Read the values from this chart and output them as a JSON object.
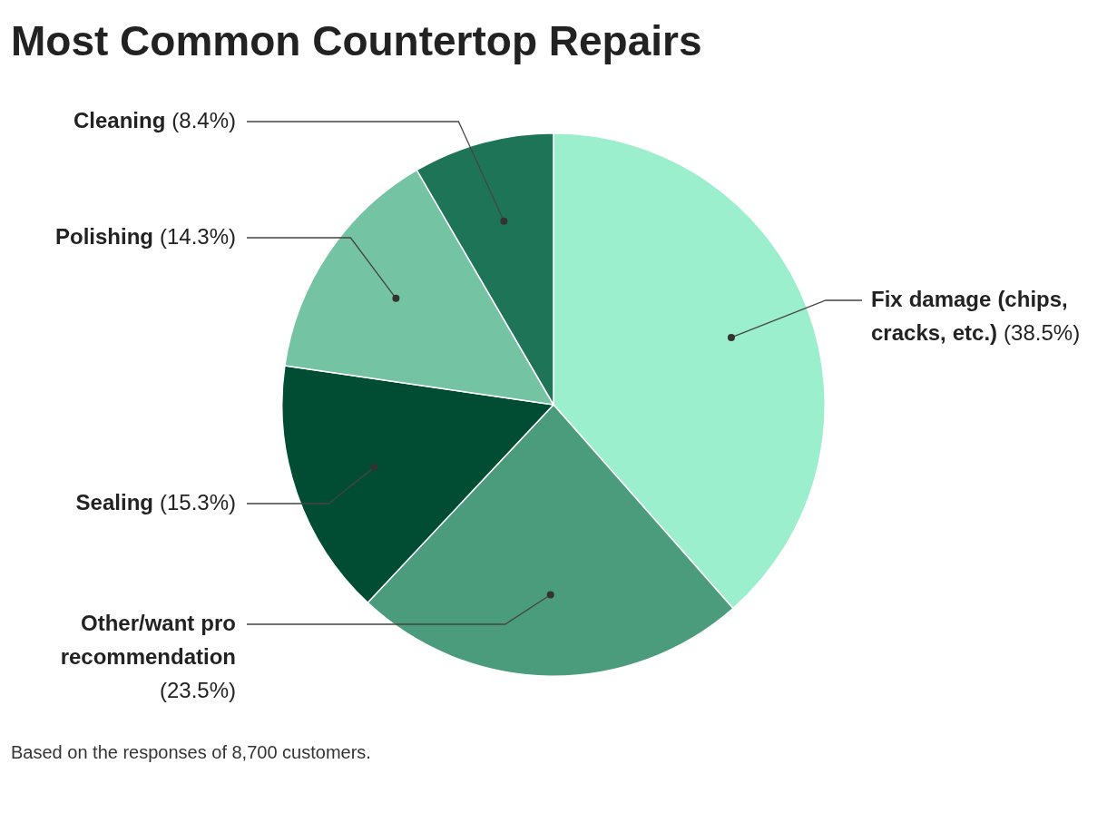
{
  "chart_data": {
    "type": "pie",
    "title": "Most Common Countertop Repairs",
    "categories": [
      "Fix damage (chips, cracks, etc.)",
      "Other/want pro recommendation",
      "Sealing",
      "Polishing",
      "Cleaning"
    ],
    "values": [
      38.5,
      23.5,
      15.3,
      14.3,
      8.4
    ],
    "colors": [
      "#9cefcc",
      "#4a9c7c",
      "#004d33",
      "#74c4a4",
      "#1e7456"
    ],
    "value_labels": [
      "(38.5%)",
      "(23.5%)",
      "(15.3%)",
      "(14.3%)",
      "(8.4%)"
    ],
    "legend": false,
    "annotations": [
      "Based on the responses of 8,700 customers."
    ]
  }
}
